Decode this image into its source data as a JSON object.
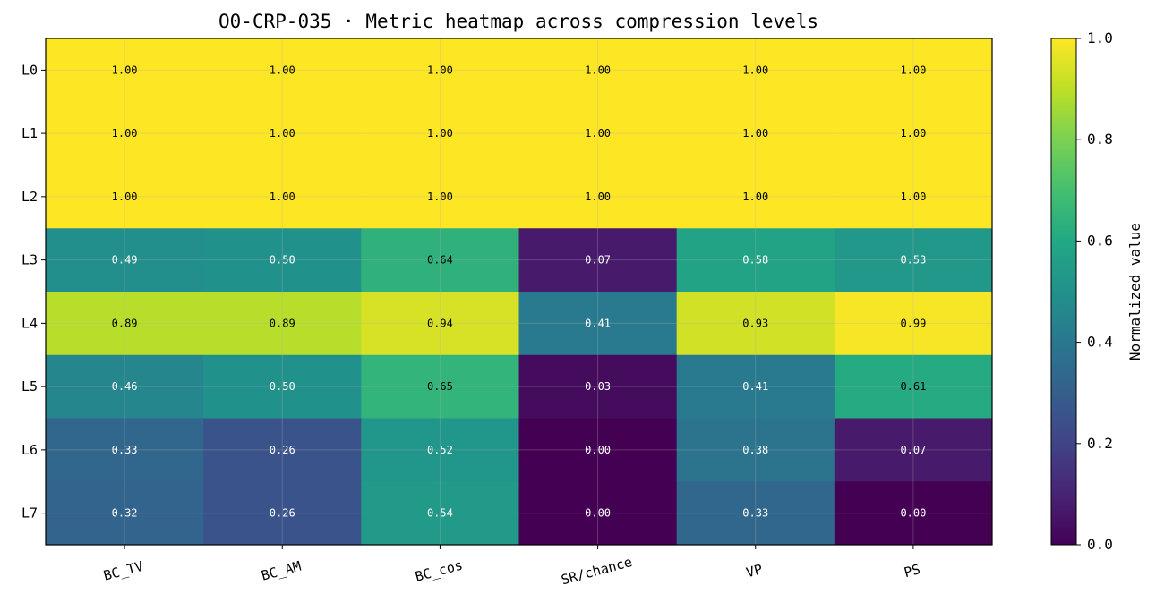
{
  "chart_data": {
    "type": "heatmap",
    "title": "O0-CRP-035 · Metric heatmap across compression levels",
    "columns": [
      "BC_TV",
      "BC_AM",
      "BC_cos",
      "SR/chance",
      "VP",
      "PS"
    ],
    "rows": [
      "L0",
      "L1",
      "L2",
      "L3",
      "L4",
      "L5",
      "L6",
      "L7"
    ],
    "values": [
      [
        1.0,
        1.0,
        1.0,
        1.0,
        1.0,
        1.0
      ],
      [
        1.0,
        1.0,
        1.0,
        1.0,
        1.0,
        1.0
      ],
      [
        1.0,
        1.0,
        1.0,
        1.0,
        1.0,
        1.0
      ],
      [
        0.49,
        0.5,
        0.64,
        0.07,
        0.58,
        0.53
      ],
      [
        0.89,
        0.89,
        0.94,
        0.41,
        0.93,
        0.99
      ],
      [
        0.46,
        0.5,
        0.65,
        0.03,
        0.41,
        0.61
      ],
      [
        0.33,
        0.26,
        0.52,
        0.0,
        0.38,
        0.07
      ],
      [
        0.32,
        0.26,
        0.54,
        0.0,
        0.33,
        0.0
      ]
    ],
    "value_labels": [
      [
        "1.00",
        "1.00",
        "1.00",
        "1.00",
        "1.00",
        "1.00"
      ],
      [
        "1.00",
        "1.00",
        "1.00",
        "1.00",
        "1.00",
        "1.00"
      ],
      [
        "1.00",
        "1.00",
        "1.00",
        "1.00",
        "1.00",
        "1.00"
      ],
      [
        "0.49",
        "0.50",
        "0.64",
        "0.07",
        "0.58",
        "0.53"
      ],
      [
        "0.89",
        "0.89",
        "0.94",
        "0.41",
        "0.93",
        "0.99"
      ],
      [
        "0.46",
        "0.50",
        "0.65",
        "0.03",
        "0.41",
        "0.61"
      ],
      [
        "0.33",
        "0.26",
        "0.52",
        "0.00",
        "0.38",
        "0.07"
      ],
      [
        "0.32",
        "0.26",
        "0.54",
        "0.00",
        "0.33",
        "0.00"
      ]
    ],
    "colormap": "viridis",
    "vmin": 0.0,
    "vmax": 1.0,
    "colorbar": {
      "label": "Normalized value",
      "ticks": [
        0.0,
        0.2,
        0.4,
        0.6,
        0.8,
        1.0
      ],
      "tick_labels": [
        "0.0",
        "0.2",
        "0.4",
        "0.6",
        "0.8",
        "1.0"
      ]
    },
    "grid": true
  }
}
